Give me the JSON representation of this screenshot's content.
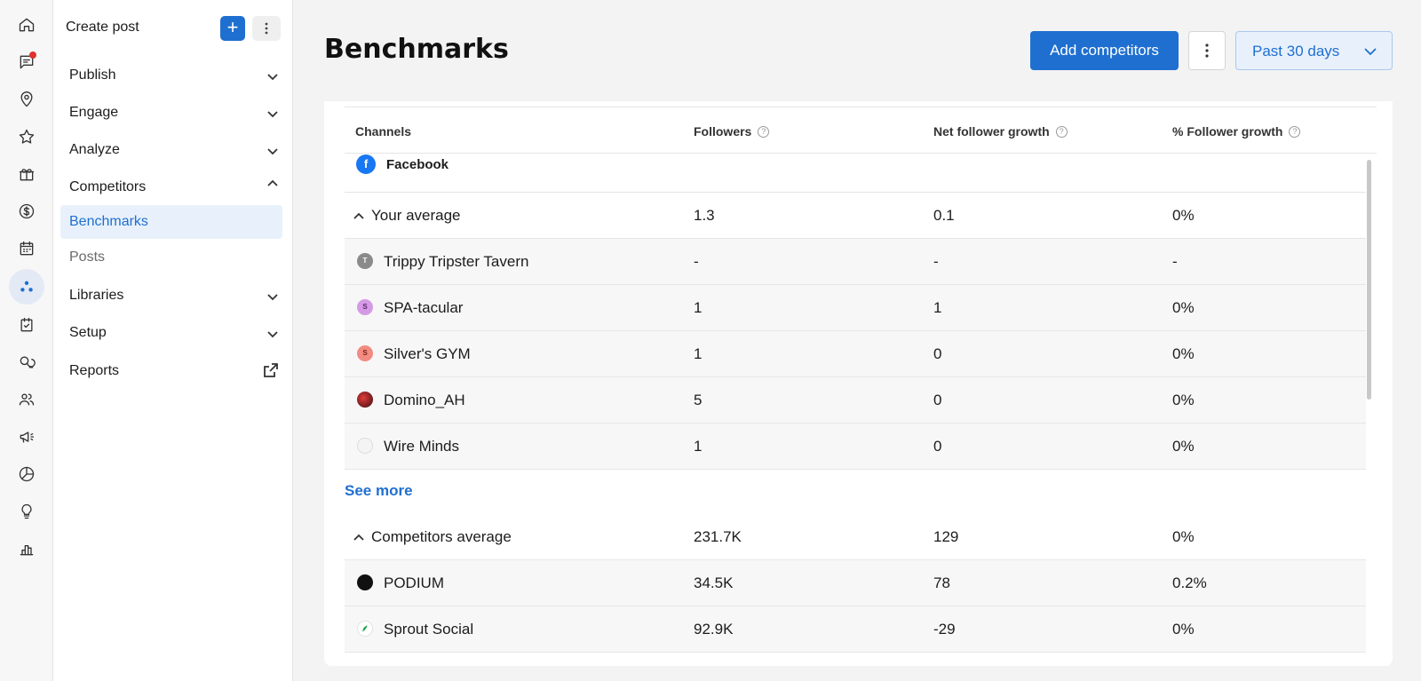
{
  "rail": {
    "icons": [
      "home-icon",
      "messages-icon",
      "location-icon",
      "star-icon",
      "gift-icon",
      "dollar-icon",
      "calendar-icon",
      "competitors-icon",
      "tasks-icon",
      "chat-bubbles-icon",
      "people-icon",
      "megaphone-icon",
      "pie-chart-icon",
      "lightbulb-icon",
      "bar-chart-icon"
    ]
  },
  "sidebar": {
    "create_label": "Create post",
    "create_plus": "+",
    "items": [
      {
        "label": "Publish"
      },
      {
        "label": "Engage"
      },
      {
        "label": "Analyze"
      },
      {
        "label": "Competitors"
      },
      {
        "label": "Benchmarks"
      },
      {
        "label": "Posts"
      },
      {
        "label": "Libraries"
      },
      {
        "label": "Setup"
      },
      {
        "label": "Reports"
      }
    ]
  },
  "header": {
    "title": "Benchmarks",
    "add_button": "Add competitors",
    "range_label": "Past 30 days"
  },
  "table": {
    "columns": [
      "Channels",
      "Followers",
      "Net follower growth",
      "% Follower growth"
    ],
    "channel": {
      "icon": "f",
      "label": "Facebook"
    },
    "your_average": {
      "name": "Your average",
      "followers": "1.3",
      "net": "0.1",
      "pct": "0%"
    },
    "own_rows": [
      {
        "name": "Trippy Tripster Tavern",
        "initial": "T",
        "color": "#8a8a8a",
        "followers": "-",
        "net": "-",
        "pct": "-"
      },
      {
        "name": "SPA-tacular",
        "initial": "S",
        "color": "#d59ae6",
        "followers": "1",
        "net": "1",
        "pct": "0%"
      },
      {
        "name": "Silver's GYM",
        "initial": "S",
        "color": "#f28b82",
        "followers": "1",
        "net": "0",
        "pct": "0%"
      },
      {
        "name": "Domino_AH",
        "initial": "",
        "color": "#b3262f",
        "followers": "5",
        "net": "0",
        "pct": "0%"
      },
      {
        "name": "Wire Minds",
        "initial": "",
        "color": "#eeeeee",
        "followers": "1",
        "net": "0",
        "pct": "0%"
      }
    ],
    "see_more": "See more",
    "competitors_average": {
      "name": "Competitors average",
      "followers": "231.7K",
      "net": "129",
      "pct": "0%"
    },
    "competitor_rows": [
      {
        "name": "PODIUM",
        "initial": "",
        "color": "#111111",
        "followers": "34.5K",
        "net": "78",
        "pct": "0.2%"
      },
      {
        "name": "Sprout Social",
        "initial": "",
        "color": "#1aa54a",
        "followers": "92.9K",
        "net": "-29",
        "pct": "0%"
      }
    ]
  }
}
